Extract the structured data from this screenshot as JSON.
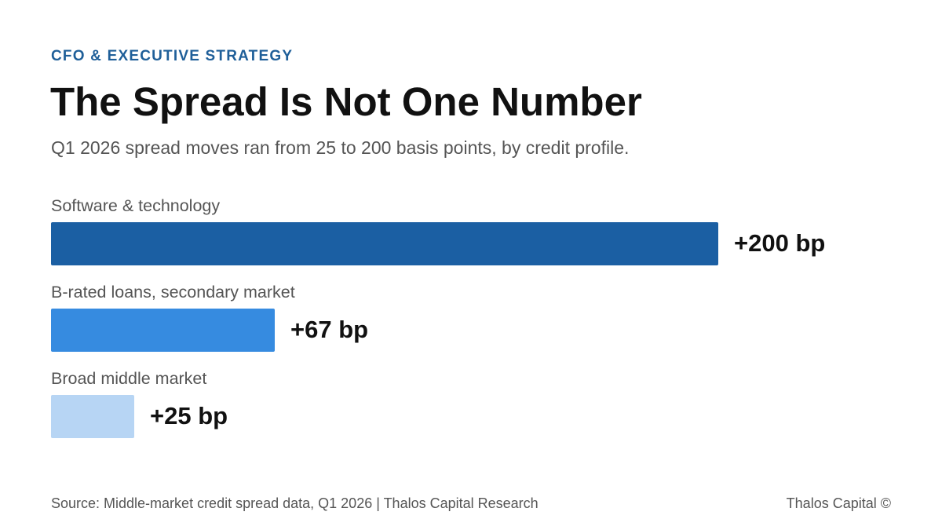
{
  "kicker": "CFO & EXECUTIVE STRATEGY",
  "title": "The Spread Is Not One Number",
  "subtitle": "Q1 2026 spread moves ran from 25 to 200 basis points, by credit profile.",
  "footer": {
    "source": "Source: Middle-market credit spread data, Q1 2026 | Thalos Capital Research",
    "brand": "Thalos Capital ©"
  },
  "chart_data": {
    "type": "bar",
    "orientation": "horizontal",
    "categories": [
      "Software & technology",
      "B-rated loans, secondary market",
      "Broad middle market"
    ],
    "values": [
      200,
      67,
      25
    ],
    "value_labels": [
      "+200 bp",
      "+67 bp",
      "+25 bp"
    ],
    "colors": [
      "#1b5fa3",
      "#368be0",
      "#b7d5f4"
    ],
    "unit": "bp",
    "xlim": [
      0,
      200
    ],
    "grid": false,
    "legend": "none"
  }
}
